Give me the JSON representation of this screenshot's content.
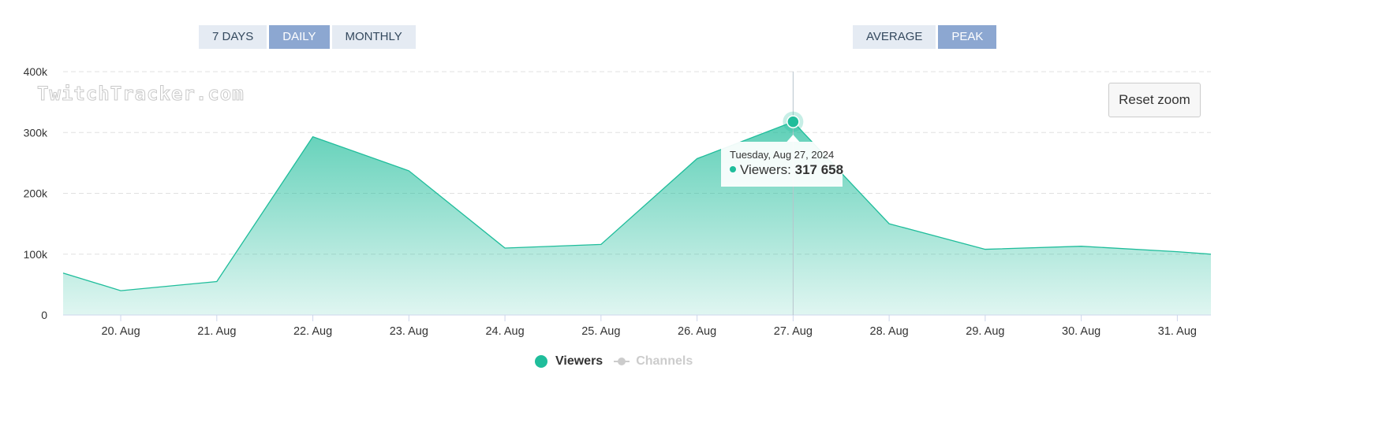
{
  "range_buttons": [
    {
      "label": "7 DAYS",
      "active": false
    },
    {
      "label": "DAILY",
      "active": true
    },
    {
      "label": "MONTHLY",
      "active": false
    }
  ],
  "metric_buttons": [
    {
      "label": "AVERAGE",
      "active": false
    },
    {
      "label": "PEAK",
      "active": true
    }
  ],
  "watermark": "TwitchTracker.com",
  "reset_zoom_label": "Reset zoom",
  "tooltip": {
    "date": "Tuesday, Aug 27, 2024",
    "series": "Viewers",
    "value": "317 658"
  },
  "legend": {
    "viewers": "Viewers",
    "channels": "Channels"
  },
  "colors": {
    "series": "#1fbd9b",
    "active_button": "#8ca7d1",
    "button": "#e5ebf3",
    "legend_hidden": "#cccccc"
  },
  "chart_data": {
    "type": "area",
    "y_ticks": [
      "0",
      "100k",
      "200k",
      "300k",
      "400k"
    ],
    "ylim": [
      0,
      400000
    ],
    "x_tick_labels": [
      "20. Aug",
      "21. Aug",
      "22. Aug",
      "23. Aug",
      "24. Aug",
      "25. Aug",
      "26. Aug",
      "27. Aug",
      "28. Aug",
      "29. Aug",
      "30. Aug",
      "31. Aug"
    ],
    "x_range": [
      19.4,
      31.35
    ],
    "grid": "horizontal dashed",
    "highlight_date": 27,
    "series": [
      {
        "name": "Viewers",
        "x": [
          19.4,
          20,
          21,
          22,
          23,
          24,
          25,
          26,
          27,
          28,
          29,
          30,
          31,
          31.35
        ],
        "values": [
          69000,
          40000,
          55000,
          293000,
          237000,
          110000,
          116000,
          257000,
          317658,
          150000,
          108000,
          113000,
          104000,
          100000
        ]
      },
      {
        "name": "Channels",
        "hidden": true,
        "values": []
      }
    ]
  }
}
